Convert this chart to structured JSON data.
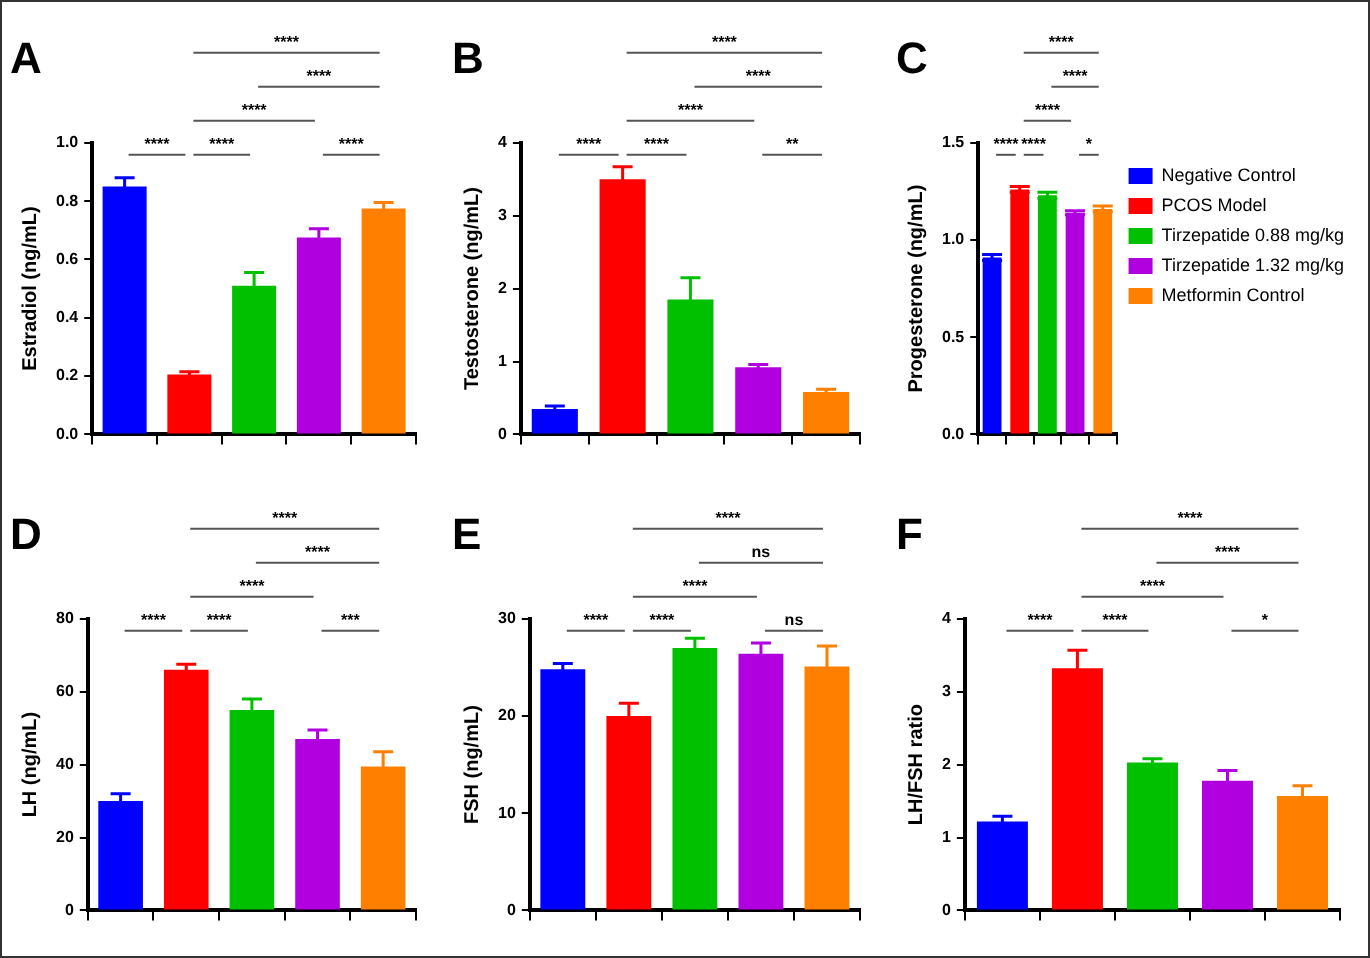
{
  "chart_data": [
    {
      "type": "bar",
      "title": "A",
      "ylabel": "Estradiol (ng/mL)",
      "categories": [
        null,
        null,
        null,
        null,
        null
      ],
      "series": [
        {
          "color": "#0000ff",
          "values": [
            0.85,
            null,
            null,
            null,
            null
          ],
          "errors": [
            0.03,
            null,
            null,
            null,
            null
          ]
        },
        {
          "color": "#ff0000",
          "values": [
            null,
            0.205,
            null,
            null,
            null
          ],
          "errors": [
            null,
            0.01,
            null,
            null,
            null
          ]
        },
        {
          "color": "#00c000",
          "values": [
            null,
            null,
            0.51,
            null,
            null
          ],
          "errors": [
            null,
            null,
            0.045,
            null,
            null
          ]
        },
        {
          "color": "#b000e0",
          "values": [
            null,
            null,
            null,
            0.675,
            null
          ],
          "errors": [
            null,
            null,
            null,
            0.03,
            null
          ]
        },
        {
          "color": "#ff8000",
          "values": [
            null,
            null,
            null,
            null,
            0.775
          ],
          "errors": [
            null,
            null,
            null,
            null,
            0.02
          ]
        }
      ],
      "ylim": [
        0,
        1
      ],
      "yticks": [
        {
          "value": 0,
          "label": "0.0"
        },
        {
          "value": 0.2,
          "label": "0.2"
        },
        {
          "value": 0.4,
          "label": "0.4"
        },
        {
          "value": 0.6,
          "label": "0.6"
        },
        {
          "value": 0.8,
          "label": "0.8"
        },
        {
          "value": 1,
          "label": "1.0"
        }
      ],
      "annotations": [
        "****",
        "****",
        "****",
        "****",
        "****",
        "****"
      ],
      "grid": false,
      "legend": false
    },
    {
      "type": "bar",
      "title": "B",
      "ylabel": "Testosterone (ng/mL)",
      "categories": [
        null,
        null,
        null,
        null,
        null
      ],
      "series": [
        {
          "color": "#0000ff",
          "values": [
            0.35,
            null,
            null,
            null,
            null
          ],
          "errors": [
            0.04,
            null,
            null,
            null,
            null
          ]
        },
        {
          "color": "#ff0000",
          "values": [
            null,
            3.5,
            null,
            null,
            null
          ],
          "errors": [
            null,
            0.17,
            null,
            null,
            null
          ]
        },
        {
          "color": "#00c000",
          "values": [
            null,
            null,
            1.85,
            null,
            null
          ],
          "errors": [
            null,
            null,
            0.3,
            null,
            null
          ]
        },
        {
          "color": "#b000e0",
          "values": [
            null,
            null,
            null,
            0.92,
            null
          ],
          "errors": [
            null,
            null,
            null,
            0.04,
            null
          ]
        },
        {
          "color": "#ff8000",
          "values": [
            null,
            null,
            null,
            null,
            0.58
          ],
          "errors": [
            null,
            null,
            null,
            null,
            0.04
          ]
        }
      ],
      "ylim": [
        0,
        4
      ],
      "yticks": [
        0,
        1,
        2,
        3,
        4
      ],
      "annotations": [
        "****",
        "****",
        "****",
        "****",
        "****",
        "**"
      ],
      "grid": false,
      "legend": false
    },
    {
      "type": "bar",
      "title": "C",
      "ylabel": "Progesterone (ng/mL)",
      "categories": [
        null,
        null,
        null,
        null,
        null
      ],
      "series": [
        {
          "name": "Negative Control",
          "color": "#0000ff",
          "values": [
            0.91,
            null,
            null,
            null,
            null
          ],
          "errors": [
            0.015,
            null,
            null,
            null,
            null
          ]
        },
        {
          "name": "PCOS Model",
          "color": "#ff0000",
          "values": [
            null,
            1.26,
            null,
            null,
            null
          ],
          "errors": [
            null,
            0.015,
            null,
            null,
            null
          ]
        },
        {
          "name": "Tirzepatide 0.88 mg/kg",
          "color": "#00c000",
          "values": [
            null,
            null,
            1.23,
            null,
            null
          ],
          "errors": [
            null,
            null,
            0.015,
            null,
            null
          ]
        },
        {
          "name": "Tirzepatide 1.32 mg/kg",
          "color": "#b000e0",
          "values": [
            null,
            null,
            null,
            1.14,
            null
          ],
          "errors": [
            null,
            null,
            null,
            0.01,
            null
          ]
        },
        {
          "name": "Metformin Control",
          "color": "#ff8000",
          "values": [
            null,
            null,
            null,
            null,
            1.16
          ],
          "errors": [
            null,
            null,
            null,
            null,
            0.015
          ]
        }
      ],
      "ylim": [
        0,
        1.5
      ],
      "yticks": [
        {
          "value": 0,
          "label": "0.0"
        },
        {
          "value": 0.5,
          "label": "0.5"
        },
        {
          "value": 1,
          "label": "1.0"
        },
        {
          "value": 1.5,
          "label": "1.5"
        }
      ],
      "annotations": [
        "****",
        "****",
        "****",
        "****",
        "****",
        "*"
      ],
      "grid": false,
      "legend": "right"
    },
    {
      "type": "bar",
      "title": "D",
      "ylabel": "LH (ng/mL)",
      "categories": [
        null,
        null,
        null,
        null,
        null
      ],
      "series": [
        {
          "color": "#0000ff",
          "values": [
            30,
            null,
            null,
            null,
            null
          ],
          "errors": [
            2,
            null,
            null,
            null,
            null
          ]
        },
        {
          "color": "#ff0000",
          "values": [
            null,
            66,
            null,
            null,
            null
          ],
          "errors": [
            null,
            1.5,
            null,
            null,
            null
          ]
        },
        {
          "color": "#00c000",
          "values": [
            null,
            null,
            55,
            null,
            null
          ],
          "errors": [
            null,
            null,
            3,
            null,
            null
          ]
        },
        {
          "color": "#b000e0",
          "values": [
            null,
            null,
            null,
            47,
            null
          ],
          "errors": [
            null,
            null,
            null,
            2.5,
            null
          ]
        },
        {
          "color": "#ff8000",
          "values": [
            null,
            null,
            null,
            null,
            39.5
          ],
          "errors": [
            null,
            null,
            null,
            null,
            4
          ]
        }
      ],
      "ylim": [
        0,
        80
      ],
      "yticks": [
        0,
        20,
        40,
        60,
        80
      ],
      "annotations": [
        "****",
        "****",
        "****",
        "****",
        "****",
        "***"
      ],
      "grid": false,
      "legend": false
    },
    {
      "type": "bar",
      "title": "E",
      "ylabel": "FSH (ng/mL)",
      "categories": [
        null,
        null,
        null,
        null,
        null
      ],
      "series": [
        {
          "color": "#0000ff",
          "values": [
            24.8,
            null,
            null,
            null,
            null
          ],
          "errors": [
            0.6,
            null,
            null,
            null,
            null
          ]
        },
        {
          "color": "#ff0000",
          "values": [
            null,
            20,
            null,
            null,
            null
          ],
          "errors": [
            null,
            1.3,
            null,
            null,
            null
          ]
        },
        {
          "color": "#00c000",
          "values": [
            null,
            null,
            27,
            null,
            null
          ],
          "errors": [
            null,
            null,
            1,
            null,
            null
          ]
        },
        {
          "color": "#b000e0",
          "values": [
            null,
            null,
            null,
            26.4,
            null
          ],
          "errors": [
            null,
            null,
            null,
            1.1,
            null
          ]
        },
        {
          "color": "#ff8000",
          "values": [
            null,
            null,
            null,
            null,
            25.1
          ],
          "errors": [
            null,
            null,
            null,
            null,
            2.1
          ]
        }
      ],
      "ylim": [
        0,
        30
      ],
      "yticks": [
        0,
        10,
        20,
        30
      ],
      "annotations": [
        "****",
        "ns",
        "****",
        "****",
        "****",
        "ns"
      ],
      "grid": false,
      "legend": false
    },
    {
      "type": "bar",
      "title": "F",
      "ylabel": "LH/FSH ratio",
      "categories": [
        null,
        null,
        null,
        null,
        null
      ],
      "series": [
        {
          "color": "#0000ff",
          "values": [
            1.22,
            null,
            null,
            null,
            null
          ],
          "errors": [
            0.07,
            null,
            null,
            null,
            null
          ]
        },
        {
          "color": "#ff0000",
          "values": [
            null,
            3.32,
            null,
            null,
            null
          ],
          "errors": [
            null,
            0.25,
            null,
            null,
            null
          ]
        },
        {
          "color": "#00c000",
          "values": [
            null,
            null,
            2.03,
            null,
            null
          ],
          "errors": [
            null,
            null,
            0.05,
            null,
            null
          ]
        },
        {
          "color": "#b000e0",
          "values": [
            null,
            null,
            null,
            1.78,
            null
          ],
          "errors": [
            null,
            null,
            null,
            0.14,
            null
          ]
        },
        {
          "color": "#ff8000",
          "values": [
            null,
            null,
            null,
            null,
            1.57
          ],
          "errors": [
            null,
            null,
            null,
            null,
            0.14
          ]
        }
      ],
      "ylim": [
        0,
        4
      ],
      "yticks": [
        0,
        1,
        2,
        3,
        4
      ],
      "annotations": [
        "****",
        "****",
        "****",
        "****",
        "****",
        "*"
      ],
      "grid": false,
      "legend": false
    }
  ]
}
